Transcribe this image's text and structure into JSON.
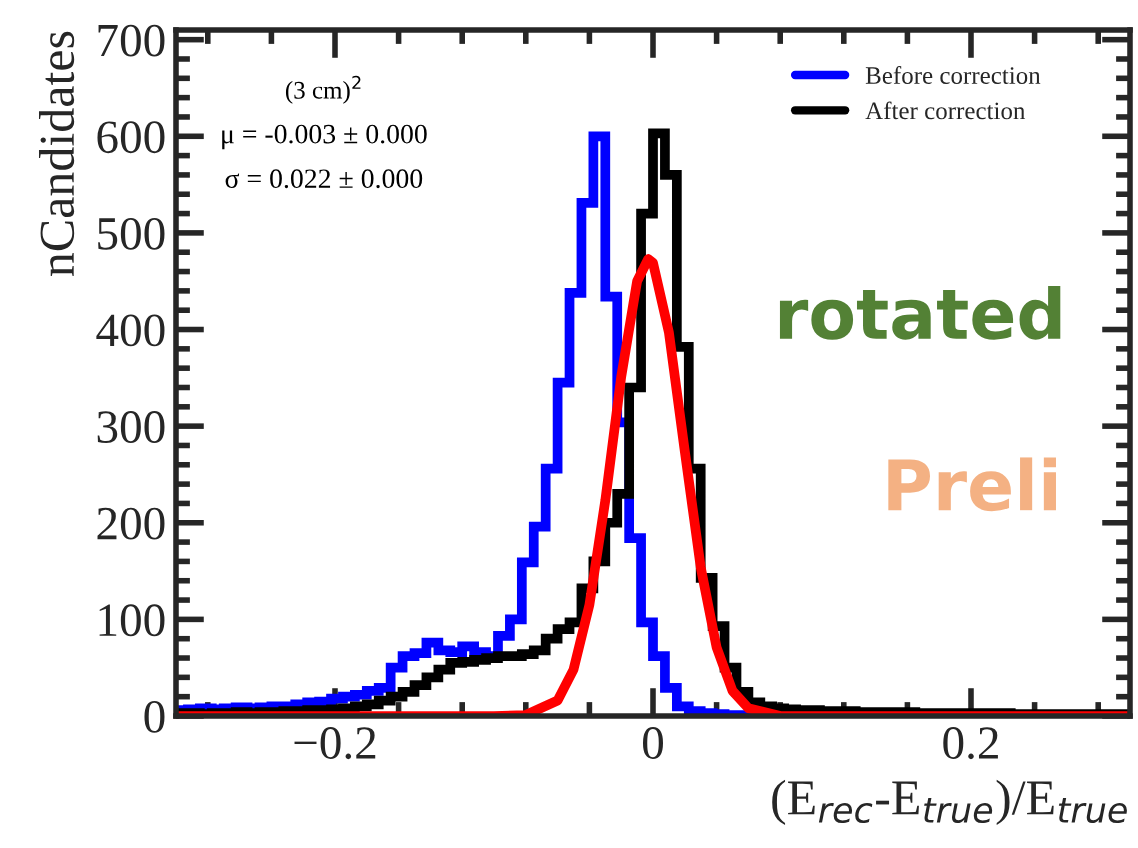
{
  "chart_data": {
    "type": "histogram",
    "xlabel": "(E$_{rec}$-E$_{true}$)/E$_{true}$",
    "ylabel": "nCandidates",
    "bins": [
      -0.3,
      -0.2925,
      -0.285,
      -0.2775,
      -0.27,
      -0.2625,
      -0.255,
      -0.2475,
      -0.24,
      -0.2325,
      -0.225,
      -0.2175,
      -0.21,
      -0.2025,
      -0.195,
      -0.1875,
      -0.18,
      -0.1725,
      -0.165,
      -0.1575,
      -0.15,
      -0.1425,
      -0.135,
      -0.1275,
      -0.12,
      -0.1125,
      -0.105,
      -0.0975,
      -0.09,
      -0.0825,
      -0.075,
      -0.0675,
      -0.06,
      -0.0525,
      -0.045,
      -0.0375,
      -0.03,
      -0.0225,
      -0.015,
      -0.0075,
      0,
      0.0075,
      0.015,
      0.0225,
      0.03,
      0.0375,
      0.045,
      0.0525,
      0.06,
      0.0675,
      0.075,
      0.0825,
      0.09,
      0.0975,
      0.105,
      0.1125,
      0.12,
      0.1275,
      0.135,
      0.1425,
      0.15,
      0.1575,
      0.165,
      0.1725,
      0.18,
      0.1875,
      0.195,
      0.2025,
      0.21,
      0.2175,
      0.225,
      0.2325,
      0.24,
      0.2475,
      0.255,
      0.2625,
      0.27,
      0.2775,
      0.285,
      0.2925,
      0.3
    ],
    "series": [
      {
        "name": "Before correction",
        "color": "#0000ff",
        "values": [
          6,
          7,
          8,
          7,
          8,
          9,
          8,
          9,
          10,
          10,
          12,
          14,
          15,
          18,
          20,
          22,
          26,
          29,
          50,
          62,
          65,
          76,
          68,
          66,
          72,
          66,
          62,
          83,
          100,
          159,
          196,
          256,
          345,
          438,
          531,
          600,
          434,
          304,
          184,
          97,
          62,
          29,
          10,
          5,
          3,
          2,
          1,
          1,
          1,
          1,
          0,
          0,
          0,
          0,
          0,
          0,
          0,
          0,
          0,
          0,
          0,
          0,
          0,
          0,
          0,
          0,
          0,
          0,
          0,
          0,
          0,
          0,
          0,
          0,
          0,
          0,
          0,
          0,
          0,
          0
        ]
      },
      {
        "name": "After correction",
        "color": "#000000",
        "values": [
          3,
          3,
          2,
          3,
          3,
          4,
          3,
          4,
          4,
          5,
          5,
          6,
          6,
          7,
          8,
          10,
          12,
          16,
          20,
          25,
          32,
          40,
          48,
          55,
          56,
          58,
          60,
          62,
          62,
          64,
          68,
          80,
          90,
          97,
          132,
          160,
          200,
          230,
          340,
          520,
          603,
          560,
          382,
          256,
          143,
          93,
          50,
          25,
          14,
          10,
          8,
          7,
          6,
          6,
          5,
          5,
          5,
          4,
          4,
          4,
          4,
          4,
          3,
          3,
          3,
          3,
          3,
          3,
          3,
          3,
          2,
          2,
          2,
          2,
          2,
          2,
          2,
          2,
          2,
          2
        ]
      },
      {
        "type": "line",
        "color": "#ff0000",
        "x": [
          -0.3,
          -0.1,
          -0.08,
          -0.06,
          -0.05,
          -0.04,
          -0.03,
          -0.02,
          -0.01,
          -0.003,
          0,
          0.01,
          0.02,
          0.03,
          0.04,
          0.05,
          0.06,
          0.08,
          0.3
        ],
        "values": [
          0,
          0,
          1,
          16,
          48,
          115,
          223,
          351,
          450,
          473,
          469,
          397,
          274,
          154,
          71,
          26,
          8,
          0,
          0
        ]
      }
    ],
    "xlim": [
      -0.3,
      0.3
    ],
    "xticks": [
      {
        "value": -0.2,
        "label": "−0.2"
      },
      0,
      0.2
    ],
    "ylim": [
      0,
      710
    ],
    "yticks": [
      0,
      100,
      200,
      300,
      400,
      500,
      600,
      700
    ],
    "legend": "top right",
    "grid": false,
    "annotations": [
      "(3 cm)$^{2}$",
      "μ = -0.003 ± 0.000",
      "σ = 0.022 ± 0.000",
      "rotated",
      "Preli"
    ]
  }
}
